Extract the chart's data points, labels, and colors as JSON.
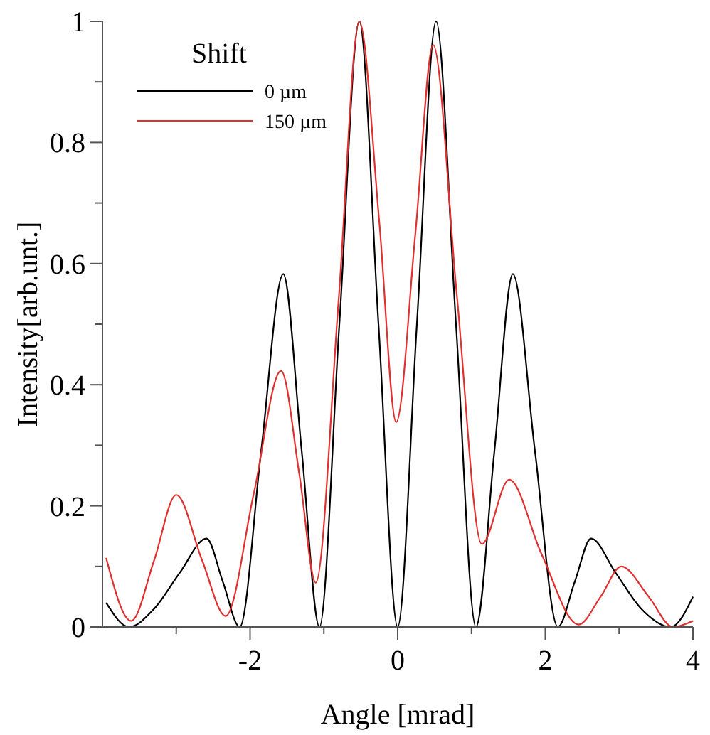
{
  "chart_data": {
    "type": "line",
    "xlabel": "Angle [mrad]",
    "ylabel": "Intensity[arb.unt.]",
    "legend_title": "Shift",
    "legend": "top left",
    "marker": "none",
    "line_style": "solid",
    "xlim": [
      -4,
      4
    ],
    "xticks": [
      {
        "value": -3,
        "label": null
      },
      -2,
      {
        "value": -1,
        "label": null
      },
      0,
      {
        "value": 1,
        "label": null
      },
      2,
      {
        "value": 3,
        "label": null
      },
      4
    ],
    "ylim": [
      0,
      1
    ],
    "yticks": [
      0,
      {
        "value": 0.1,
        "label": null
      },
      0.2,
      {
        "value": 0.3,
        "label": null
      },
      0.4,
      {
        "value": 0.5,
        "label": null
      },
      0.6,
      {
        "value": 0.7,
        "label": null
      },
      0.8,
      {
        "value": 0.9,
        "label": null
      },
      1
    ],
    "series": [
      {
        "name": "0 µm",
        "color": "#000000",
        "x": [
          -3.95,
          -3.64,
          -3.3,
          -2.95,
          -2.59,
          -2.37,
          -2.14,
          -1.85,
          -1.55,
          -1.3,
          -1.06,
          -0.79,
          -0.52,
          -0.26,
          0,
          0.26,
          0.52,
          0.79,
          1.06,
          1.31,
          1.56,
          1.86,
          2.17,
          2.4,
          2.62,
          2.95,
          3.3,
          3.7,
          4.0
        ],
        "values": [
          0.04,
          0,
          0.03,
          0.09,
          0.146,
          0.075,
          0,
          0.29,
          0.583,
          0.29,
          0,
          0.5,
          1.0,
          0.5,
          0,
          0.5,
          1.0,
          0.5,
          0,
          0.29,
          0.583,
          0.29,
          0,
          0.075,
          0.146,
          0.09,
          0.03,
          0,
          0.05
        ]
      },
      {
        "name": "150 µm",
        "color": "#e03030",
        "x": [
          -3.95,
          -3.61,
          -3.3,
          -3.0,
          -2.65,
          -2.33,
          -1.95,
          -1.58,
          -1.33,
          -1.11,
          -0.8,
          -0.52,
          -0.25,
          -0.02,
          0.24,
          0.48,
          0.8,
          1.14,
          1.51,
          1.95,
          2.45,
          2.75,
          3.03,
          3.4,
          3.73,
          4.0
        ],
        "values": [
          0.114,
          0.01,
          0.11,
          0.218,
          0.11,
          0.018,
          0.22,
          0.423,
          0.25,
          0.073,
          0.54,
          1.0,
          0.67,
          0.338,
          0.65,
          0.961,
          0.55,
          0.137,
          0.243,
          0.12,
          0.004,
          0.05,
          0.1,
          0.05,
          0,
          0.01
        ]
      }
    ]
  }
}
